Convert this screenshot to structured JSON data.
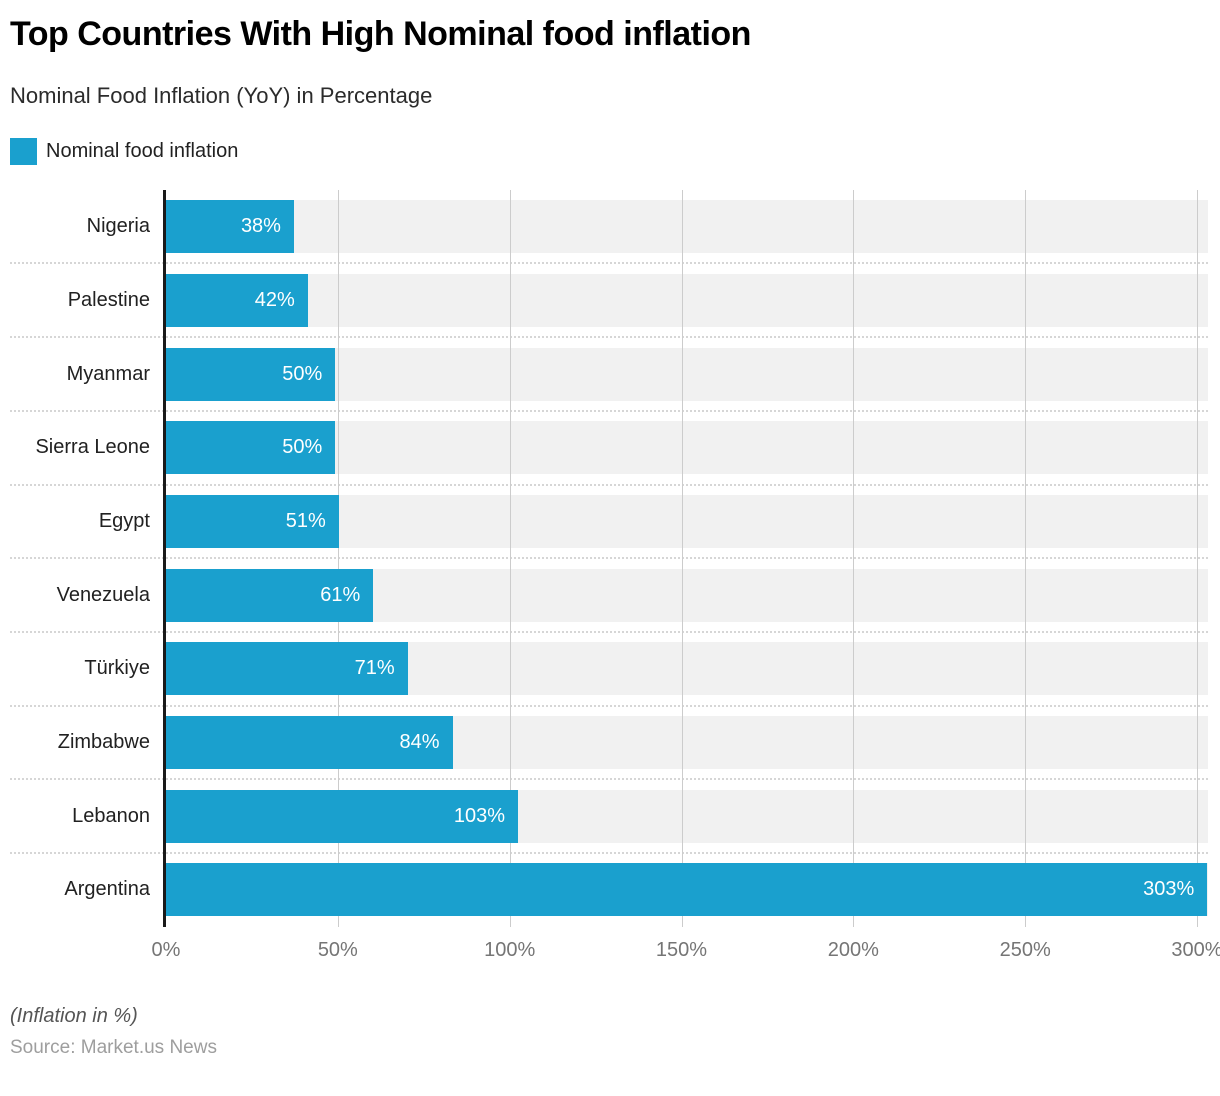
{
  "header": {
    "title": "Top Countries With High Nominal food inflation",
    "subtitle": "Nominal Food Inflation (YoY) in Percentage"
  },
  "legend": {
    "label": "Nominal food inflation",
    "swatch_color": "#1aa0ce"
  },
  "chart_data": {
    "type": "bar",
    "orientation": "horizontal",
    "title": "Top Countries With High Nominal food inflation",
    "series_name": "Nominal food inflation",
    "categories": [
      "Nigeria",
      "Palestine",
      "Myanmar",
      "Sierra Leone",
      "Egypt",
      "Venezuela",
      "Türkiye",
      "Zimbabwe",
      "Lebanon",
      "Argentina"
    ],
    "values": [
      38,
      42,
      50,
      50,
      51,
      61,
      71,
      84,
      103,
      303
    ],
    "value_labels": [
      "38%",
      "42%",
      "50%",
      "50%",
      "51%",
      "61%",
      "71%",
      "84%",
      "103%",
      "303%"
    ],
    "x_ticks": [
      {
        "value": 0,
        "label": "0%"
      },
      {
        "value": 50,
        "label": "50%"
      },
      {
        "value": 100,
        "label": "100%"
      },
      {
        "value": 150,
        "label": "150%"
      },
      {
        "value": 200,
        "label": "200%"
      },
      {
        "value": 250,
        "label": "250%"
      },
      {
        "value": 300,
        "label": "300%"
      }
    ],
    "xlim": [
      0,
      303.2
    ],
    "xlabel": "",
    "ylabel": "",
    "grid": "vertical",
    "bar_color": "#1aa0ce",
    "track_color": "#f1f1f1",
    "gridline_color": "#cccccc"
  },
  "footer": {
    "note": "(Inflation in %)",
    "source": "Source: Market.us News"
  }
}
